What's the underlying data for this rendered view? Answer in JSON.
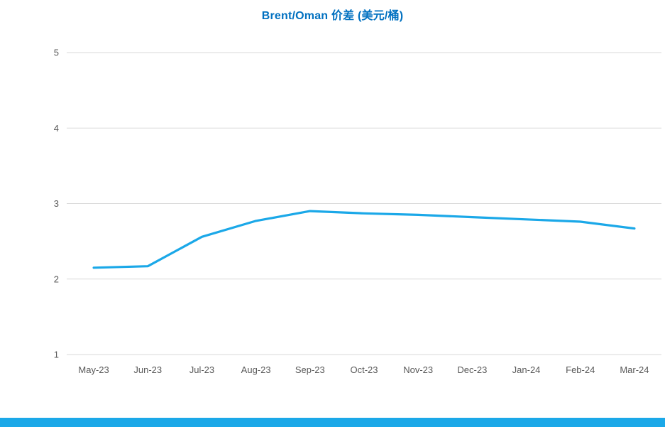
{
  "title": {
    "text": "Brent/Oman 价差 (美元/桶)",
    "color": "#0070C0"
  },
  "colors": {
    "line": "#1BA8E8",
    "gridline": "#D9D9D9",
    "tick_label": "#595959",
    "bottom_bar": "#1BA8E8",
    "background": "#FFFFFF"
  },
  "chart_data": {
    "type": "line",
    "title": "Brent/Oman 价差 (美元/桶)",
    "categories": [
      "May-23",
      "Jun-23",
      "Jul-23",
      "Aug-23",
      "Sep-23",
      "Oct-23",
      "Nov-23",
      "Dec-23",
      "Jan-24",
      "Feb-24",
      "Mar-24"
    ],
    "series": [
      {
        "name": "Brent/Oman 价差 (美元/桶)",
        "values": [
          2.15,
          2.17,
          2.56,
          2.77,
          2.9,
          2.87,
          2.85,
          2.82,
          2.79,
          2.76,
          2.67
        ]
      }
    ],
    "xlabel": "",
    "ylabel": "",
    "ylim": [
      1,
      5
    ],
    "yticks": [
      1,
      2,
      3,
      4,
      5
    ],
    "grid": true,
    "legend": "none"
  }
}
